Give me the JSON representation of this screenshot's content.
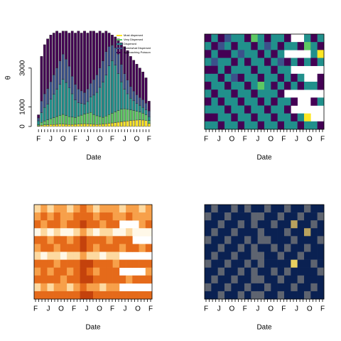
{
  "chart_data": [
    {
      "type": "bar_stacked",
      "ylabel": "θ",
      "xlabel": "Date",
      "categories": [
        "F",
        null,
        null,
        null,
        "J",
        null,
        null,
        null,
        "O",
        null,
        null,
        null,
        "F",
        null,
        null,
        null,
        "J",
        null,
        null,
        null,
        "O",
        null,
        null,
        null,
        "F",
        null,
        null,
        null,
        "J",
        null,
        null,
        null,
        "O",
        null,
        null,
        null,
        "F"
      ],
      "ylim": [
        0,
        5000
      ],
      "yticks": [
        0,
        1000,
        3000
      ],
      "series": [
        {
          "name": "Most dispersed",
          "color": "#FDE725",
          "values": [
            30,
            60,
            80,
            90,
            100,
            100,
            110,
            120,
            120,
            110,
            100,
            100,
            110,
            120,
            130,
            140,
            130,
            120,
            110,
            100,
            110,
            120,
            140,
            160,
            180,
            200,
            220,
            240,
            260,
            280,
            300,
            320,
            330,
            340,
            330,
            300,
            150
          ]
        },
        {
          "name": "Very Dispersed",
          "color": "#5DC863",
          "values": [
            60,
            150,
            200,
            250,
            300,
            350,
            400,
            450,
            500,
            450,
            400,
            380,
            350,
            400,
            450,
            500,
            550,
            600,
            500,
            450,
            400,
            350,
            400,
            450,
            500,
            550,
            600,
            650,
            650,
            600,
            550,
            500,
            450,
            400,
            350,
            300,
            150
          ]
        },
        {
          "name": "Dispersed",
          "color": "#21908C",
          "values": [
            200,
            500,
            700,
            800,
            1000,
            1200,
            1400,
            1600,
            1800,
            1700,
            1500,
            1200,
            900,
            700,
            600,
            500,
            600,
            800,
            1000,
            1200,
            1500,
            1800,
            2100,
            2500,
            2700,
            2400,
            1900,
            1400,
            1000,
            800,
            600,
            500,
            400,
            350,
            300,
            250,
            200
          ]
        },
        {
          "name": "Somewhat Dispersed",
          "color": "#3B528B",
          "values": [
            150,
            600,
            700,
            800,
            900,
            1000,
            1100,
            1200,
            1300,
            1200,
            1100,
            900,
            800,
            700,
            650,
            600,
            650,
            700,
            800,
            900,
            1000,
            1100,
            1200,
            1000,
            800,
            900,
            1000,
            900,
            800,
            700,
            600,
            500,
            450,
            400,
            400,
            350,
            300
          ]
        },
        {
          "name": "Approaching Poisson",
          "color": "#440154",
          "values": [
            160,
            2290,
            2520,
            2560,
            2400,
            2150,
            1890,
            1430,
            1180,
            1440,
            1700,
            2320,
            2640,
            2980,
            2970,
            3160,
            2870,
            2680,
            2490,
            2150,
            1890,
            1430,
            1060,
            690,
            520,
            550,
            780,
            1110,
            1390,
            1520,
            1550,
            1580,
            1570,
            1510,
            1420,
            1300,
            500
          ]
        }
      ]
    },
    {
      "type": "heatmap",
      "xlabel": "Date",
      "categories": [
        "F",
        null,
        null,
        null,
        "J",
        null,
        null,
        null,
        "O",
        null,
        null,
        null,
        "F",
        null,
        null,
        null,
        "J",
        null,
        null,
        null,
        "O",
        null,
        null,
        null,
        "F",
        null,
        null,
        null,
        "J",
        null,
        null,
        null,
        "O",
        null,
        null,
        null,
        "F"
      ],
      "colors": [
        "#440154",
        "#3B528B",
        "#21908C",
        "#5DC863",
        "#FDE725"
      ],
      "matrix": [
        [
          0,
          2,
          0,
          1,
          2,
          2,
          0,
          3,
          2,
          0,
          2,
          2,
          0,
          null,
          null,
          2,
          0,
          2
        ],
        [
          2,
          0,
          1,
          2,
          0,
          2,
          2,
          0,
          2,
          1,
          2,
          0,
          2,
          2,
          0,
          3,
          2,
          0
        ],
        [
          0,
          2,
          0,
          0,
          2,
          1,
          2,
          2,
          0,
          2,
          0,
          2,
          null,
          null,
          null,
          null,
          2,
          4
        ],
        [
          2,
          1,
          2,
          2,
          0,
          2,
          0,
          2,
          2,
          0,
          2,
          1,
          0,
          2,
          0,
          2,
          0,
          2
        ],
        [
          0,
          0,
          2,
          0,
          2,
          2,
          2,
          0,
          2,
          2,
          0,
          2,
          2,
          null,
          null,
          null,
          null,
          null
        ],
        [
          2,
          2,
          0,
          2,
          1,
          0,
          2,
          2,
          0,
          2,
          2,
          0,
          2,
          0,
          2,
          null,
          null,
          0
        ],
        [
          0,
          2,
          2,
          0,
          2,
          2,
          0,
          2,
          3,
          2,
          0,
          2,
          0,
          2,
          0,
          2,
          2,
          0
        ],
        [
          2,
          0,
          2,
          2,
          0,
          2,
          2,
          0,
          2,
          2,
          2,
          0,
          null,
          null,
          null,
          null,
          null,
          null
        ],
        [
          0,
          2,
          0,
          2,
          2,
          0,
          2,
          2,
          0,
          2,
          0,
          2,
          2,
          0,
          null,
          null,
          0,
          2
        ],
        [
          2,
          2,
          2,
          0,
          2,
          2,
          0,
          2,
          2,
          0,
          2,
          2,
          0,
          null,
          null,
          null,
          null,
          null
        ],
        [
          0,
          0,
          2,
          2,
          0,
          2,
          2,
          0,
          2,
          2,
          0,
          2,
          2,
          0,
          2,
          4,
          null,
          null
        ],
        [
          2,
          2,
          0,
          2,
          2,
          0,
          2,
          2,
          0,
          2,
          2,
          0,
          2,
          2,
          0,
          2,
          2,
          0
        ]
      ]
    },
    {
      "type": "heatmap",
      "xlabel": "Date",
      "categories": [
        "F",
        null,
        null,
        null,
        "J",
        null,
        null,
        null,
        "O",
        null,
        null,
        null,
        "F",
        null,
        null,
        null,
        "J",
        null,
        null,
        null,
        "O",
        null,
        null,
        null,
        "F",
        null,
        null,
        null,
        "J",
        null,
        null,
        null,
        "O",
        null,
        null,
        null,
        "F"
      ],
      "colors": [
        "#FFF8E8",
        "#FDD9A0",
        "#F7A04A",
        "#E56A1A",
        "#C4420C"
      ],
      "matrix": [
        [
          1,
          2,
          1,
          2,
          2,
          1,
          2,
          3,
          2,
          1,
          2,
          2,
          2,
          1,
          2,
          2,
          1,
          2
        ],
        [
          2,
          3,
          2,
          3,
          2,
          2,
          3,
          3,
          3,
          2,
          3,
          3,
          2,
          2,
          3,
          2,
          2,
          2
        ],
        [
          3,
          2,
          3,
          3,
          2,
          3,
          3,
          4,
          3,
          3,
          2,
          3,
          3,
          null,
          null,
          null,
          2,
          3
        ],
        [
          0,
          1,
          0,
          1,
          0,
          0,
          1,
          2,
          1,
          0,
          1,
          1,
          0,
          0,
          1,
          0,
          0,
          0
        ],
        [
          3,
          3,
          2,
          3,
          3,
          2,
          3,
          4,
          3,
          3,
          3,
          2,
          3,
          3,
          3,
          null,
          null,
          null
        ],
        [
          2,
          3,
          3,
          2,
          3,
          3,
          3,
          4,
          3,
          2,
          3,
          3,
          3,
          2,
          3,
          3,
          2,
          3
        ],
        [
          1,
          0,
          1,
          1,
          0,
          1,
          1,
          2,
          1,
          1,
          0,
          1,
          1,
          null,
          null,
          null,
          null,
          null
        ],
        [
          3,
          3,
          3,
          2,
          3,
          3,
          3,
          4,
          4,
          3,
          3,
          3,
          2,
          3,
          3,
          3,
          3,
          3
        ],
        [
          2,
          3,
          2,
          3,
          3,
          2,
          3,
          4,
          3,
          2,
          3,
          3,
          3,
          null,
          null,
          null,
          null,
          2
        ],
        [
          3,
          3,
          3,
          3,
          2,
          3,
          3,
          4,
          4,
          3,
          3,
          3,
          3,
          3,
          2,
          3,
          3,
          3
        ],
        [
          1,
          2,
          1,
          2,
          2,
          1,
          2,
          3,
          2,
          2,
          1,
          2,
          2,
          null,
          null,
          null,
          null,
          null
        ],
        [
          3,
          3,
          3,
          3,
          3,
          3,
          3,
          4,
          4,
          3,
          3,
          3,
          3,
          3,
          3,
          3,
          3,
          3
        ]
      ]
    },
    {
      "type": "heatmap",
      "xlabel": "Date",
      "categories": [
        "F",
        null,
        null,
        null,
        "J",
        null,
        null,
        null,
        "O",
        null,
        null,
        null,
        "F",
        null,
        null,
        null,
        "J",
        null,
        null,
        null,
        "O",
        null,
        null,
        null,
        "F",
        null,
        null,
        null,
        "J",
        null,
        null,
        null,
        "O",
        null,
        null,
        null,
        "F"
      ],
      "colors": [
        "#0A2152",
        "#5E6470",
        "#B9A25E",
        "#E8D060"
      ],
      "matrix": [
        [
          0,
          1,
          0,
          0,
          1,
          0,
          1,
          0,
          0,
          1,
          0,
          0,
          1,
          0,
          0,
          1,
          0,
          0
        ],
        [
          1,
          0,
          0,
          1,
          0,
          0,
          0,
          1,
          1,
          0,
          0,
          1,
          0,
          0,
          1,
          0,
          0,
          1
        ],
        [
          0,
          0,
          1,
          0,
          0,
          1,
          0,
          1,
          0,
          0,
          1,
          0,
          0,
          2,
          0,
          0,
          1,
          0
        ],
        [
          0,
          1,
          0,
          0,
          1,
          0,
          0,
          0,
          1,
          0,
          0,
          0,
          1,
          0,
          0,
          2,
          0,
          0
        ],
        [
          1,
          0,
          0,
          1,
          0,
          0,
          1,
          0,
          1,
          1,
          0,
          0,
          0,
          1,
          0,
          0,
          0,
          1
        ],
        [
          0,
          0,
          1,
          0,
          0,
          1,
          0,
          1,
          0,
          0,
          1,
          0,
          1,
          0,
          0,
          1,
          0,
          0
        ],
        [
          0,
          1,
          0,
          0,
          1,
          0,
          0,
          1,
          1,
          0,
          0,
          1,
          0,
          0,
          1,
          0,
          0,
          0
        ],
        [
          1,
          0,
          0,
          1,
          0,
          0,
          1,
          0,
          1,
          0,
          0,
          0,
          0,
          3,
          0,
          0,
          1,
          0
        ],
        [
          0,
          0,
          1,
          0,
          0,
          1,
          0,
          1,
          0,
          0,
          1,
          0,
          1,
          0,
          0,
          0,
          0,
          1
        ],
        [
          0,
          1,
          0,
          0,
          1,
          0,
          0,
          1,
          1,
          0,
          0,
          1,
          0,
          0,
          1,
          0,
          0,
          0
        ],
        [
          1,
          0,
          0,
          1,
          0,
          0,
          1,
          0,
          0,
          1,
          0,
          0,
          0,
          1,
          0,
          0,
          1,
          0
        ],
        [
          0,
          0,
          1,
          0,
          0,
          1,
          0,
          1,
          1,
          0,
          0,
          1,
          0,
          0,
          0,
          1,
          0,
          0
        ]
      ]
    }
  ]
}
